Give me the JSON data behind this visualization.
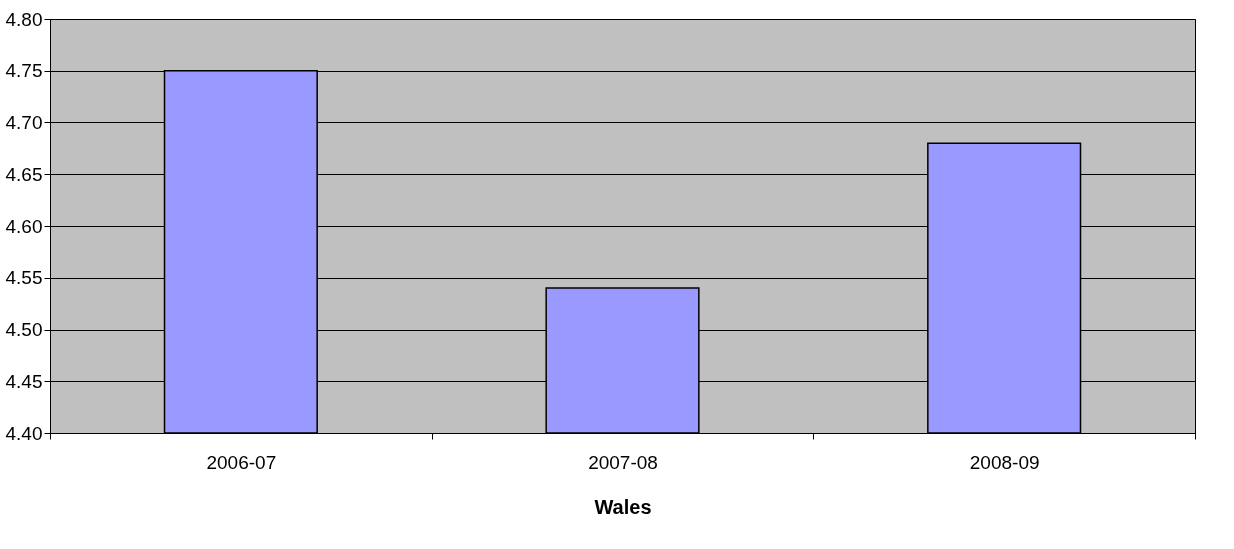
{
  "chart_data": {
    "type": "bar",
    "xlabel": "Wales",
    "categories": [
      "2006-07",
      "2007-08",
      "2008-09"
    ],
    "values": [
      4.75,
      4.54,
      4.68
    ],
    "color": "#9999ff",
    "ylim": [
      4.4,
      4.8
    ],
    "yticks": [
      {
        "value": 4.4,
        "label": "4.40"
      },
      {
        "value": 4.45,
        "label": "4.45"
      },
      {
        "value": 4.5,
        "label": "4.50"
      },
      {
        "value": 4.55,
        "label": "4.55"
      },
      {
        "value": 4.6,
        "label": "4.60"
      },
      {
        "value": 4.65,
        "label": "4.65"
      },
      {
        "value": 4.7,
        "label": "4.70"
      },
      {
        "value": 4.75,
        "label": "4.75"
      },
      {
        "value": 4.8,
        "label": "4.80"
      }
    ],
    "grid": "y"
  }
}
